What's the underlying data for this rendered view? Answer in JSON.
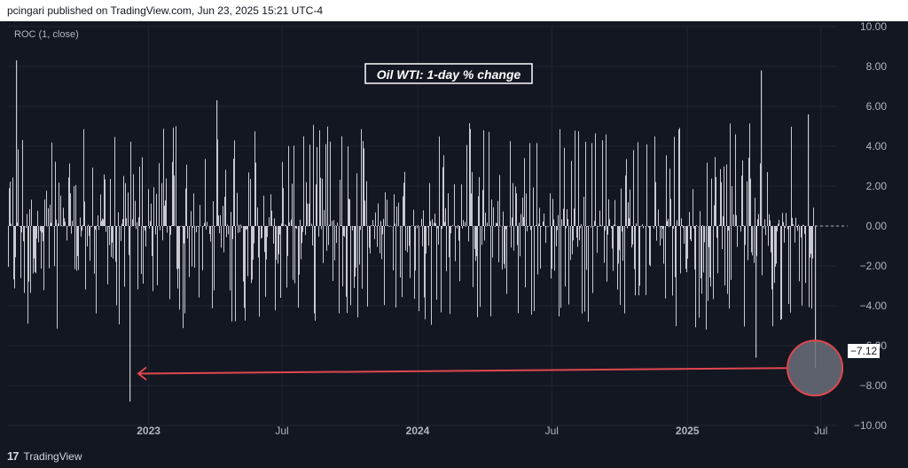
{
  "header": {
    "attribution": "pcingari published on TradingView.com, Jun 23, 2025 15:21 UTC-4"
  },
  "indicator_label": "ROC (1, close)",
  "branding": {
    "logo_glyph": "17",
    "name": "TradingView"
  },
  "colors": {
    "background": "#131722",
    "bars": "#c8cad1",
    "grid": "#1f2433",
    "axis_text": "#b2b5be",
    "arrow": "#e0474f",
    "circle_fill": "#6b6f7a",
    "circle_stroke": "#e0474f"
  },
  "chart_data": {
    "type": "bar",
    "title": "Oil WTI: 1-day % change",
    "ylabel": "",
    "xlabel": "",
    "ylim": [
      -10,
      10
    ],
    "yticks": [
      "10.00",
      "8.00",
      "6.00",
      "4.00",
      "2.00",
      "0.00",
      "−2.00",
      "−4.00",
      "−6.00",
      "−8.00",
      "−10.00"
    ],
    "xticks": [
      "2023",
      "Jul",
      "2024",
      "Jul",
      "2025",
      "Jul"
    ],
    "xrange": [
      "2022-06-23",
      "2025-07-23"
    ],
    "last_value_label": "−7.12",
    "last_value": -7.12,
    "annotated_points": [
      {
        "date": "2022-07-05",
        "value": 8.3
      },
      {
        "date": "2022-12-06",
        "value": -8.8
      },
      {
        "date": "2023-04-03",
        "value": 6.3
      },
      {
        "date": "2025-04-03",
        "value": -6.6
      },
      {
        "date": "2025-04-10",
        "value": 7.8
      },
      {
        "date": "2025-06-13",
        "value": 5.6
      },
      {
        "date": "2025-06-23",
        "value": -7.12
      }
    ]
  }
}
